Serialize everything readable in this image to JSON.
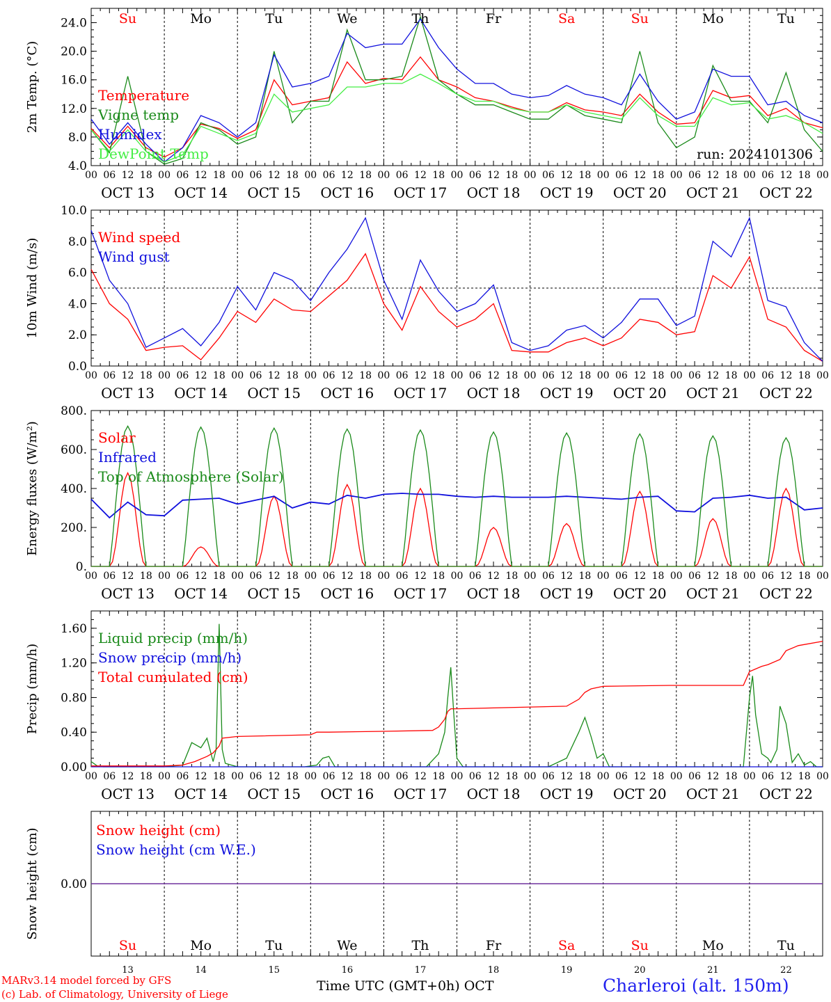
{
  "run_label": "run: 2024101306",
  "station": "Charleroi (alt. 150m)",
  "credits": [
    "MARv3.14 model forced by GFS",
    "(c) Lab. of Climatology, University of Liege"
  ],
  "x_axis_label": "Time UTC (GMT+0h) OCT",
  "days": [
    {
      "weekday": "Su",
      "date": "OCT 13",
      "num": "13",
      "weekend": true
    },
    {
      "weekday": "Mo",
      "date": "OCT 14",
      "num": "14",
      "weekend": false
    },
    {
      "weekday": "Tu",
      "date": "OCT 15",
      "num": "15",
      "weekend": false
    },
    {
      "weekday": "We",
      "date": "OCT 16",
      "num": "16",
      "weekend": false
    },
    {
      "weekday": "Th",
      "date": "OCT 17",
      "num": "17",
      "weekend": false
    },
    {
      "weekday": "Fr",
      "date": "OCT 18",
      "num": "18",
      "weekend": false
    },
    {
      "weekday": "Sa",
      "date": "OCT 19",
      "num": "19",
      "weekend": true
    },
    {
      "weekday": "Su",
      "date": "OCT 20",
      "num": "20",
      "weekend": true
    },
    {
      "weekday": "Mo",
      "date": "OCT 21",
      "num": "21",
      "weekend": false
    },
    {
      "weekday": "Tu",
      "date": "OCT 22",
      "num": "22",
      "weekend": false
    }
  ],
  "hour_ticks": [
    "00",
    "06",
    "12",
    "18"
  ],
  "colors": {
    "red": "#ff0000",
    "green": "#1a8a1a",
    "blue": "#1010dd",
    "lightgreen": "#44ee44",
    "purple": "#6a2a9a"
  },
  "chart_data": [
    {
      "type": "line",
      "ylabel": "2m Temp. (°C)",
      "ylim": [
        4,
        26
      ],
      "yticks": [
        "4.0",
        "8.0",
        "12.0",
        "16.0",
        "20.0",
        "24.0"
      ],
      "ytick_values": [
        4,
        8,
        12,
        16,
        20,
        24
      ],
      "x_hours_start": 0,
      "x_hours_end": 240,
      "series": [
        {
          "name": "Temperature",
          "color": "red",
          "x": [
            0,
            6,
            12,
            18,
            24,
            30,
            36,
            42,
            48,
            54,
            60,
            66,
            72,
            78,
            84,
            90,
            96,
            102,
            108,
            114,
            120,
            126,
            132,
            138,
            144,
            150,
            156,
            162,
            168,
            174,
            180,
            186,
            192,
            198,
            204,
            210,
            216,
            222,
            228,
            234,
            240
          ],
          "values": [
            9.2,
            6.5,
            9.5,
            6.5,
            5.2,
            6.5,
            9.8,
            9.2,
            7.8,
            9.0,
            16.0,
            12.5,
            13.0,
            13.5,
            18.5,
            15.5,
            16.2,
            16.0,
            19.2,
            16.0,
            15.0,
            13.5,
            13.0,
            12.2,
            11.5,
            11.5,
            12.8,
            11.8,
            11.5,
            11.0,
            14.0,
            11.5,
            9.8,
            10.0,
            14.5,
            13.5,
            13.8,
            11.0,
            12.0,
            10.0,
            9.3
          ]
        },
        {
          "name": "Vigne temp",
          "color": "green",
          "x": [
            0,
            6,
            12,
            18,
            24,
            30,
            36,
            42,
            48,
            54,
            60,
            66,
            72,
            78,
            84,
            90,
            96,
            102,
            108,
            114,
            120,
            126,
            132,
            138,
            144,
            150,
            156,
            162,
            168,
            174,
            180,
            186,
            192,
            198,
            204,
            210,
            216,
            222,
            228,
            234,
            240
          ],
          "values": [
            9.0,
            5.8,
            16.5,
            6.0,
            4.2,
            5.0,
            10.0,
            9.0,
            7.0,
            8.0,
            20.0,
            10.0,
            13.0,
            13.0,
            23.0,
            16.0,
            16.0,
            16.5,
            24.8,
            16.0,
            14.0,
            12.5,
            12.5,
            11.5,
            10.5,
            10.5,
            12.5,
            11.0,
            10.5,
            10.0,
            20.0,
            10.0,
            6.5,
            8.0,
            18.0,
            13.0,
            13.0,
            10.0,
            17.0,
            9.0,
            6.0
          ]
        },
        {
          "name": "Humidex",
          "color": "blue",
          "x": [
            0,
            6,
            12,
            18,
            24,
            30,
            36,
            42,
            48,
            54,
            60,
            66,
            72,
            78,
            84,
            90,
            96,
            102,
            108,
            114,
            120,
            126,
            132,
            138,
            144,
            150,
            156,
            162,
            168,
            174,
            180,
            186,
            192,
            198,
            204,
            210,
            216,
            222,
            228,
            234,
            240
          ],
          "values": [
            10.5,
            7.0,
            10.0,
            7.0,
            4.5,
            6.5,
            11.0,
            10.0,
            8.0,
            10.0,
            19.5,
            15.0,
            15.5,
            16.5,
            22.5,
            20.5,
            21.0,
            21.0,
            24.5,
            20.5,
            17.5,
            15.5,
            15.5,
            14.0,
            13.5,
            13.8,
            15.2,
            14.0,
            13.5,
            12.5,
            16.8,
            13.0,
            10.5,
            11.5,
            17.5,
            16.5,
            16.5,
            12.5,
            13.0,
            11.0,
            10.0
          ]
        },
        {
          "name": "DewPoint Temp",
          "color": "lightgreen",
          "x": [
            0,
            6,
            12,
            18,
            24,
            30,
            36,
            42,
            48,
            54,
            60,
            66,
            72,
            78,
            84,
            90,
            96,
            102,
            108,
            114,
            120,
            126,
            132,
            138,
            144,
            150,
            156,
            162,
            168,
            174,
            180,
            186,
            192,
            198,
            204,
            210,
            216,
            222,
            228,
            234,
            240
          ],
          "values": [
            9.0,
            6.0,
            9.0,
            6.0,
            4.5,
            5.5,
            9.5,
            8.5,
            7.5,
            8.5,
            14.0,
            11.5,
            12.0,
            12.5,
            15.0,
            15.0,
            15.5,
            15.5,
            16.8,
            15.5,
            14.0,
            13.0,
            13.0,
            12.0,
            11.5,
            11.5,
            12.5,
            11.5,
            11.0,
            10.5,
            13.5,
            11.0,
            9.5,
            9.5,
            13.5,
            12.5,
            12.8,
            10.5,
            11.0,
            10.0,
            8.5
          ]
        }
      ]
    },
    {
      "type": "line",
      "ylabel": "10m Wind (m/s)",
      "ylim": [
        0,
        10
      ],
      "yticks": [
        "0.0",
        "2.0",
        "4.0",
        "6.0",
        "8.0",
        "10.0"
      ],
      "ytick_values": [
        0,
        2,
        4,
        6,
        8,
        10
      ],
      "ref_line": 5,
      "series": [
        {
          "name": "Wind speed",
          "color": "red",
          "x": [
            0,
            6,
            12,
            18,
            24,
            30,
            36,
            42,
            48,
            54,
            60,
            66,
            72,
            78,
            84,
            90,
            96,
            102,
            108,
            114,
            120,
            126,
            132,
            138,
            144,
            150,
            156,
            162,
            168,
            174,
            180,
            186,
            192,
            198,
            204,
            210,
            216,
            222,
            228,
            234,
            240
          ],
          "values": [
            6.2,
            4.0,
            3.0,
            1.0,
            1.2,
            1.3,
            0.4,
            1.8,
            3.5,
            2.8,
            4.3,
            3.6,
            3.5,
            4.5,
            5.5,
            7.2,
            4.0,
            2.3,
            5.1,
            3.5,
            2.5,
            3.0,
            4.0,
            1.0,
            0.9,
            0.9,
            1.5,
            1.8,
            1.3,
            1.8,
            3.0,
            2.8,
            2.0,
            2.2,
            5.8,
            5.0,
            7.0,
            3.0,
            2.5,
            1.0,
            0.3
          ]
        },
        {
          "name": "Wind gust",
          "color": "blue",
          "x": [
            0,
            6,
            12,
            18,
            24,
            30,
            36,
            42,
            48,
            54,
            60,
            66,
            72,
            78,
            84,
            90,
            96,
            102,
            108,
            114,
            120,
            126,
            132,
            138,
            144,
            150,
            156,
            162,
            168,
            174,
            180,
            186,
            192,
            198,
            204,
            210,
            216,
            222,
            228,
            234,
            240
          ],
          "values": [
            8.7,
            5.5,
            4.0,
            1.2,
            1.8,
            2.4,
            1.3,
            2.8,
            5.1,
            3.6,
            6.0,
            5.5,
            4.2,
            6.0,
            7.5,
            9.5,
            5.5,
            3.0,
            6.8,
            4.8,
            3.5,
            4.0,
            5.2,
            1.5,
            1.0,
            1.3,
            2.3,
            2.6,
            1.8,
            2.8,
            4.3,
            4.3,
            2.6,
            3.2,
            8.0,
            7.0,
            9.5,
            4.2,
            3.8,
            1.5,
            0.3
          ]
        }
      ]
    },
    {
      "type": "line",
      "ylabel": "Energy fluxes (W/m²)",
      "ylim": [
        0,
        800
      ],
      "yticks": [
        "0.",
        "200.",
        "400.",
        "600.",
        "800."
      ],
      "ytick_values": [
        0,
        200,
        400,
        600,
        800
      ],
      "series": [
        {
          "name": "Solar",
          "color": "red",
          "shape": "daily",
          "day_peaks": [
            480,
            100,
            360,
            420,
            400,
            200,
            220,
            385,
            245,
            400
          ]
        },
        {
          "name": "Infrared",
          "color": "blue",
          "x": [
            0,
            6,
            12,
            18,
            24,
            30,
            36,
            42,
            48,
            54,
            60,
            66,
            72,
            78,
            84,
            90,
            96,
            102,
            108,
            114,
            120,
            126,
            132,
            138,
            144,
            150,
            156,
            162,
            168,
            174,
            180,
            186,
            192,
            198,
            204,
            210,
            216,
            222,
            228,
            234,
            240
          ],
          "values": [
            345,
            250,
            330,
            265,
            260,
            340,
            345,
            350,
            320,
            340,
            360,
            300,
            330,
            320,
            365,
            350,
            370,
            375,
            370,
            370,
            360,
            355,
            360,
            355,
            355,
            355,
            360,
            355,
            350,
            345,
            355,
            360,
            285,
            280,
            350,
            355,
            365,
            350,
            355,
            290,
            300
          ]
        },
        {
          "name": "Top of Atmosphere (Solar)",
          "color": "green",
          "shape": "daily",
          "day_peaks": [
            720,
            715,
            710,
            705,
            700,
            690,
            685,
            680,
            670,
            660
          ]
        }
      ]
    },
    {
      "type": "line",
      "ylabel": "Precip (mm/h)",
      "ylim": [
        0,
        1.8
      ],
      "yticks": [
        "0.00",
        "0.40",
        "0.80",
        "1.20",
        "1.60"
      ],
      "ytick_values": [
        0,
        0.4,
        0.8,
        1.2,
        1.6
      ],
      "series": [
        {
          "name": "Liquid precip (mm/h)",
          "color": "green",
          "x": [
            0,
            2,
            4,
            24,
            30,
            33,
            36,
            38,
            40,
            41,
            42,
            43,
            44,
            46,
            48,
            70,
            74,
            76,
            78,
            80,
            110,
            114,
            116,
            117,
            118,
            119,
            120,
            122,
            150,
            156,
            160,
            162,
            164,
            166,
            168,
            170,
            214,
            216,
            217,
            218,
            220,
            222,
            223,
            225,
            226,
            228,
            230,
            232,
            234,
            236,
            238,
            240
          ],
          "values": [
            0.06,
            0.01,
            0.0,
            0.0,
            0.02,
            0.28,
            0.22,
            0.33,
            0.06,
            0.2,
            1.65,
            0.2,
            0.04,
            0.02,
            0.0,
            0.0,
            0.02,
            0.1,
            0.12,
            0.0,
            0.0,
            0.15,
            0.4,
            0.8,
            1.15,
            0.6,
            0.1,
            0.0,
            0.0,
            0.1,
            0.4,
            0.57,
            0.35,
            0.1,
            0.15,
            0.0,
            0.0,
            0.8,
            1.05,
            0.6,
            0.15,
            0.1,
            0.05,
            0.2,
            0.7,
            0.5,
            0.05,
            0.15,
            0.02,
            0.06,
            0.0,
            0.0
          ]
        },
        {
          "name": "Snow precip (mm/h)",
          "color": "blue",
          "x": [
            0,
            240
          ],
          "values": [
            0,
            0
          ]
        },
        {
          "name": "Total cumulated (cm)",
          "color": "red",
          "x": [
            0,
            24,
            30,
            34,
            38,
            40,
            42,
            43,
            48,
            72,
            74,
            78,
            96,
            112,
            114,
            116,
            117,
            118,
            120,
            144,
            156,
            160,
            162,
            164,
            168,
            190,
            200,
            214,
            216,
            220,
            222,
            226,
            228,
            232,
            240
          ],
          "values": [
            0.01,
            0.01,
            0.02,
            0.06,
            0.12,
            0.16,
            0.24,
            0.33,
            0.35,
            0.37,
            0.4,
            0.4,
            0.41,
            0.42,
            0.46,
            0.55,
            0.64,
            0.67,
            0.67,
            0.69,
            0.7,
            0.78,
            0.86,
            0.9,
            0.93,
            0.94,
            0.94,
            0.94,
            1.1,
            1.16,
            1.18,
            1.24,
            1.34,
            1.4,
            1.45
          ]
        }
      ]
    },
    {
      "type": "line",
      "ylabel": "Snow height (cm)",
      "ylim": [
        -1,
        1
      ],
      "yticks": [
        "0.00"
      ],
      "ytick_values": [
        0
      ],
      "series": [
        {
          "name": "Snow height (cm)",
          "color": "red",
          "x": [
            0,
            240
          ],
          "values": [
            0,
            0
          ]
        },
        {
          "name": "Snow height (cm W.E.)",
          "color": "blue",
          "x": [
            0,
            240
          ],
          "values": [
            0,
            0
          ]
        }
      ]
    }
  ]
}
